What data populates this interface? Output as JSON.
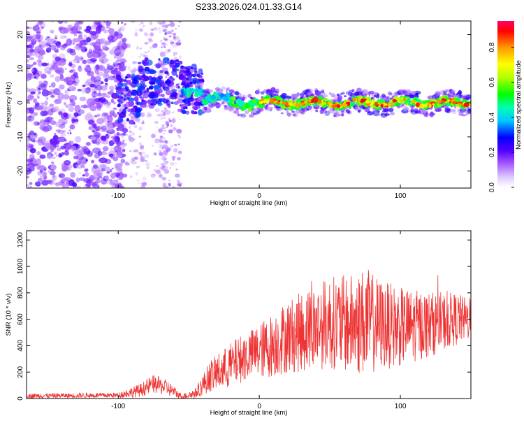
{
  "title": "S233.2026.024.01.33.G14",
  "chart_data": [
    {
      "type": "heatmap",
      "xlabel": "Height of straight line (km)",
      "ylabel": "Frequency (Hz)",
      "xlim": [
        -165,
        150
      ],
      "ylim": [
        -25,
        24
      ],
      "xticks": [
        -100,
        0,
        100
      ],
      "yticks": [
        -20,
        -10,
        0,
        10,
        20
      ],
      "colorbar": {
        "label": "Normalized spectral amplitude",
        "range": [
          0,
          0.95
        ],
        "ticks": [
          0.0,
          0.2,
          0.4,
          0.6,
          0.8
        ]
      },
      "ridge": {
        "description": "dominant spectral line near 0 Hz from -55 km to 150 km",
        "start_km": -55,
        "end_km": 150,
        "frequency_hz": 0
      }
    },
    {
      "type": "line",
      "xlabel": "Height of straight line (km)",
      "ylabel": "SNR (10 * v/v)",
      "xlim": [
        -165,
        150
      ],
      "ylim": [
        0,
        1270
      ],
      "xticks": [
        -100,
        0,
        100
      ],
      "yticks": [
        0,
        200,
        400,
        600,
        800,
        1000,
        1200
      ],
      "series": [
        {
          "name": "SNR",
          "color": "#ee3333",
          "envelope": {
            "x": [
              -165,
              -100,
              -85,
              -75,
              -65,
              -55,
              -45,
              -35,
              -25,
              -15,
              -5,
              5,
              20,
              35,
              50,
              65,
              75,
              85,
              100,
              120,
              140,
              150
            ],
            "mean": [
              20,
              25,
              60,
              110,
              80,
              15,
              40,
              170,
              220,
              290,
              340,
              380,
              470,
              520,
              580,
              560,
              580,
              560,
              540,
              560,
              600,
              600
            ],
            "amp": [
              18,
              20,
              50,
              70,
              60,
              20,
              40,
              120,
              160,
              180,
              190,
              230,
              280,
              320,
              350,
              380,
              420,
              350,
              300,
              250,
              200,
              150
            ]
          }
        }
      ]
    }
  ]
}
